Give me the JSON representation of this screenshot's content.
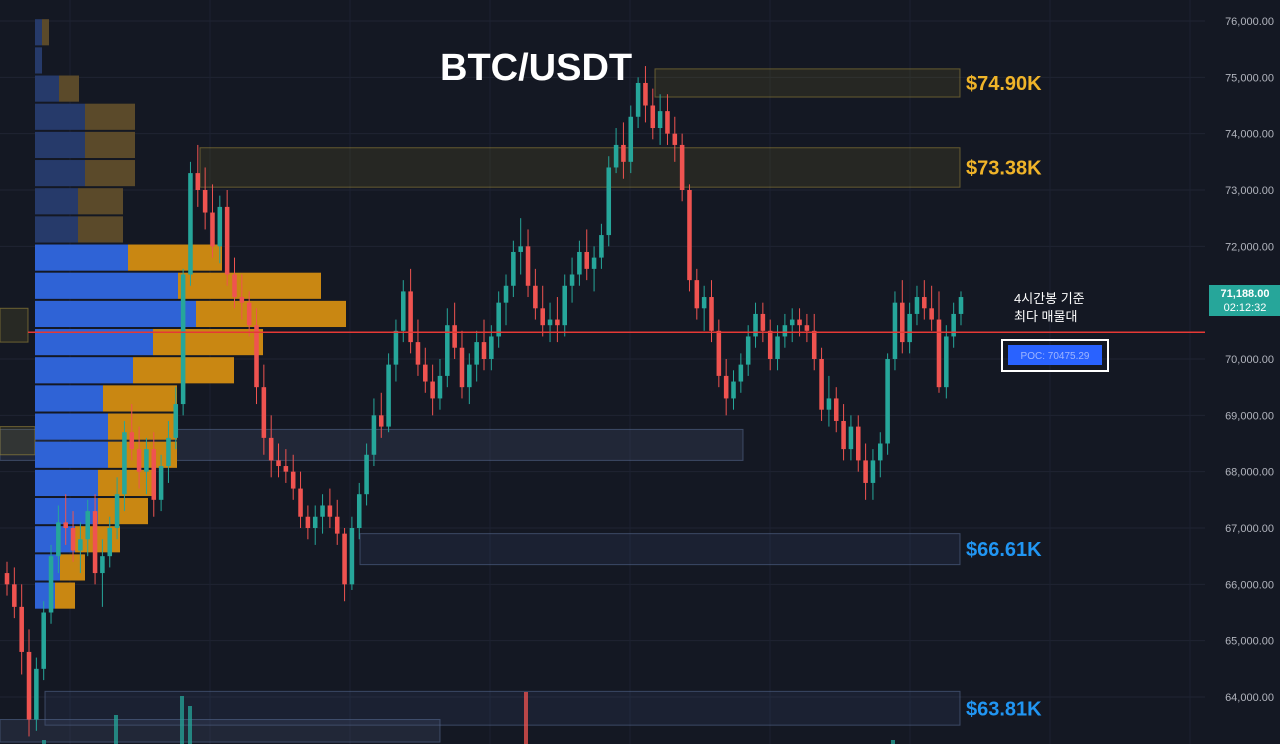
{
  "chart_data": {
    "type": "candlestick",
    "title": "BTC/USDT",
    "y_axis": {
      "ticks": [
        "76,000.00",
        "75,000.00",
        "74,000.00",
        "73,000.00",
        "72,000.00",
        "70,000.00",
        "69,000.00",
        "68,000.00",
        "67,000.00",
        "66,000.00",
        "65,000.00",
        "64,000.00"
      ],
      "tick_values": [
        76000,
        75000,
        74000,
        73000,
        72000,
        70000,
        69000,
        68000,
        67000,
        66000,
        65000,
        64000
      ],
      "range": [
        63200,
        76400
      ]
    },
    "current_price": {
      "label": "71,188.00",
      "countdown": "02:12:32",
      "value": 71188
    },
    "poc": {
      "value": 70475.29,
      "label": "POC: 70475.29",
      "note_line1": "4시간봉 기준",
      "note_line2": "최다 매물대"
    },
    "levels": [
      {
        "label": "$74.90K",
        "low": 74650,
        "high": 75150,
        "color": "#f0b429"
      },
      {
        "label": "$73.38K",
        "low": 73050,
        "high": 73750,
        "color": "#f0b429"
      },
      {
        "label": "$66.61K",
        "low": 66350,
        "high": 66900,
        "color": "#2196f3"
      },
      {
        "label": "$63.81K",
        "low": 63500,
        "high": 64100,
        "color": "#2196f3"
      }
    ],
    "extra_zones": [
      {
        "low": 68200,
        "high": 68750,
        "color": "#4a5a78"
      }
    ],
    "volume_profile": {
      "bins": [
        {
          "mid": 75800,
          "buy": 7,
          "sell": 7
        },
        {
          "mid": 75300,
          "buy": 7,
          "sell": 0
        },
        {
          "mid": 74800,
          "buy": 24,
          "sell": 20
        },
        {
          "mid": 74300,
          "buy": 50,
          "sell": 50
        },
        {
          "mid": 73800,
          "buy": 50,
          "sell": 50
        },
        {
          "mid": 73300,
          "buy": 50,
          "sell": 50
        },
        {
          "mid": 72800,
          "buy": 43,
          "sell": 45
        },
        {
          "mid": 72300,
          "buy": 43,
          "sell": 45
        },
        {
          "mid": 71800,
          "buy": 93,
          "sell": 94
        },
        {
          "mid": 71300,
          "buy": 143,
          "sell": 143
        },
        {
          "mid": 70800,
          "buy": 161,
          "sell": 150
        },
        {
          "mid": 70300,
          "buy": 118,
          "sell": 110
        },
        {
          "mid": 69800,
          "buy": 98,
          "sell": 101
        },
        {
          "mid": 69300,
          "buy": 68,
          "sell": 74
        },
        {
          "mid": 68800,
          "buy": 73,
          "sell": 69
        },
        {
          "mid": 68300,
          "buy": 73,
          "sell": 69
        },
        {
          "mid": 67800,
          "buy": 63,
          "sell": 55
        },
        {
          "mid": 67300,
          "buy": 63,
          "sell": 50
        },
        {
          "mid": 66800,
          "buy": 40,
          "sell": 45
        },
        {
          "mid": 66300,
          "buy": 25,
          "sell": 25
        },
        {
          "mid": 65800,
          "buy": 20,
          "sell": 20
        }
      ]
    },
    "candles": [
      [
        66200,
        66400,
        65800,
        66000
      ],
      [
        66000,
        66300,
        65400,
        65600
      ],
      [
        65600,
        66000,
        64400,
        64800
      ],
      [
        64800,
        65200,
        63300,
        63600
      ],
      [
        63600,
        64700,
        63400,
        64500
      ],
      [
        64500,
        65700,
        64300,
        65500
      ],
      [
        65500,
        66700,
        65300,
        66500
      ],
      [
        66500,
        67400,
        66200,
        67100
      ],
      [
        67100,
        67600,
        66700,
        67000
      ],
      [
        67000,
        67300,
        66400,
        66600
      ],
      [
        66600,
        67100,
        66200,
        66800
      ],
      [
        66800,
        67500,
        66500,
        67300
      ],
      [
        67300,
        67600,
        66000,
        66200
      ],
      [
        66200,
        66800,
        65600,
        66500
      ],
      [
        66500,
        67200,
        66300,
        67000
      ],
      [
        67000,
        67900,
        66800,
        67600
      ],
      [
        67600,
        68900,
        67300,
        68700
      ],
      [
        68700,
        69200,
        68200,
        68400
      ],
      [
        68400,
        68800,
        67700,
        68000
      ],
      [
        68000,
        68600,
        67600,
        68400
      ],
      [
        68400,
        68700,
        67200,
        67500
      ],
      [
        67500,
        68300,
        67300,
        68100
      ],
      [
        68100,
        68900,
        67800,
        68600
      ],
      [
        68600,
        69500,
        68400,
        69200
      ],
      [
        69200,
        71600,
        69000,
        71500
      ],
      [
        71500,
        73500,
        71300,
        73300
      ],
      [
        73300,
        73800,
        72700,
        73000
      ],
      [
        73000,
        73400,
        72300,
        72600
      ],
      [
        72600,
        73100,
        71800,
        72000
      ],
      [
        72000,
        72900,
        71700,
        72700
      ],
      [
        72700,
        73000,
        71300,
        71500
      ],
      [
        71500,
        71800,
        70900,
        71100
      ],
      [
        71100,
        71500,
        70700,
        71000
      ],
      [
        71000,
        71200,
        70400,
        70600
      ],
      [
        70600,
        70900,
        69200,
        69500
      ],
      [
        69500,
        69900,
        68300,
        68600
      ],
      [
        68600,
        69000,
        67900,
        68200
      ],
      [
        68200,
        68500,
        67900,
        68100
      ],
      [
        68100,
        68400,
        67800,
        68000
      ],
      [
        68000,
        68300,
        67500,
        67700
      ],
      [
        67700,
        68000,
        67000,
        67200
      ],
      [
        67200,
        67400,
        66800,
        67000
      ],
      [
        67000,
        67400,
        66700,
        67200
      ],
      [
        67200,
        67600,
        66900,
        67400
      ],
      [
        67400,
        67700,
        67000,
        67200
      ],
      [
        67200,
        67500,
        66700,
        66900
      ],
      [
        66900,
        67000,
        65700,
        66000
      ],
      [
        66000,
        67200,
        65900,
        67000
      ],
      [
        67000,
        67800,
        66800,
        67600
      ],
      [
        67600,
        68500,
        67400,
        68300
      ],
      [
        68300,
        69300,
        68100,
        69000
      ],
      [
        69000,
        69400,
        68600,
        68800
      ],
      [
        68800,
        70100,
        68700,
        69900
      ],
      [
        69900,
        70700,
        69600,
        70500
      ],
      [
        70500,
        71400,
        70300,
        71200
      ],
      [
        71200,
        71600,
        70100,
        70300
      ],
      [
        70300,
        70700,
        69700,
        69900
      ],
      [
        69900,
        70200,
        69400,
        69600
      ],
      [
        69600,
        69900,
        69000,
        69300
      ],
      [
        69300,
        70000,
        69100,
        69700
      ],
      [
        69700,
        70900,
        69500,
        70600
      ],
      [
        70600,
        71000,
        70000,
        70200
      ],
      [
        70200,
        70500,
        69300,
        69500
      ],
      [
        69500,
        70100,
        69200,
        69900
      ],
      [
        69900,
        70500,
        69600,
        70300
      ],
      [
        70300,
        70700,
        69800,
        70000
      ],
      [
        70000,
        70600,
        69800,
        70400
      ],
      [
        70400,
        71200,
        70200,
        71000
      ],
      [
        71000,
        71500,
        70600,
        71300
      ],
      [
        71300,
        72100,
        71100,
        71900
      ],
      [
        71900,
        72500,
        71500,
        72000
      ],
      [
        72000,
        72300,
        71100,
        71300
      ],
      [
        71300,
        71600,
        70700,
        70900
      ],
      [
        70900,
        71300,
        70400,
        70600
      ],
      [
        70600,
        71000,
        70300,
        70700
      ],
      [
        70700,
        71100,
        70300,
        70600
      ],
      [
        70600,
        71500,
        70400,
        71300
      ],
      [
        71300,
        71800,
        71000,
        71500
      ],
      [
        71500,
        72100,
        71300,
        71900
      ],
      [
        71900,
        72300,
        71400,
        71600
      ],
      [
        71600,
        72000,
        71200,
        71800
      ],
      [
        71800,
        72400,
        71600,
        72200
      ],
      [
        72200,
        73600,
        72000,
        73400
      ],
      [
        73400,
        74100,
        73300,
        73800
      ],
      [
        73800,
        74200,
        73200,
        73500
      ],
      [
        73500,
        74500,
        73300,
        74300
      ],
      [
        74300,
        75000,
        74100,
        74900
      ],
      [
        74900,
        75200,
        74200,
        74500
      ],
      [
        74500,
        74800,
        73900,
        74100
      ],
      [
        74100,
        74700,
        73800,
        74400
      ],
      [
        74400,
        74700,
        73800,
        74000
      ],
      [
        74000,
        74300,
        73500,
        73800
      ],
      [
        73800,
        74000,
        72800,
        73000
      ],
      [
        73000,
        73100,
        71200,
        71400
      ],
      [
        71400,
        71600,
        70700,
        70900
      ],
      [
        70900,
        71300,
        70500,
        71100
      ],
      [
        71100,
        71400,
        70300,
        70500
      ],
      [
        70500,
        70700,
        69500,
        69700
      ],
      [
        69700,
        70000,
        69000,
        69300
      ],
      [
        69300,
        69800,
        69100,
        69600
      ],
      [
        69600,
        70100,
        69400,
        69900
      ],
      [
        69900,
        70600,
        69700,
        70400
      ],
      [
        70400,
        71000,
        70200,
        70800
      ],
      [
        70800,
        71000,
        70300,
        70500
      ],
      [
        70500,
        70700,
        69800,
        70000
      ],
      [
        70000,
        70600,
        69800,
        70400
      ],
      [
        70400,
        70800,
        70200,
        70600
      ],
      [
        70600,
        70900,
        70300,
        70700
      ],
      [
        70700,
        70900,
        70400,
        70600
      ],
      [
        70600,
        70800,
        70300,
        70500
      ],
      [
        70500,
        70800,
        69800,
        70000
      ],
      [
        70000,
        70200,
        68900,
        69100
      ],
      [
        69100,
        69700,
        68800,
        69300
      ],
      [
        69300,
        69500,
        68700,
        68900
      ],
      [
        68900,
        69200,
        68200,
        68400
      ],
      [
        68400,
        69000,
        68200,
        68800
      ],
      [
        68800,
        69000,
        68000,
        68200
      ],
      [
        68200,
        68500,
        67500,
        67800
      ],
      [
        67800,
        68400,
        67500,
        68200
      ],
      [
        68200,
        68700,
        67900,
        68500
      ],
      [
        68500,
        70100,
        68300,
        70000
      ],
      [
        70000,
        71200,
        69800,
        71000
      ],
      [
        71000,
        71400,
        70100,
        70300
      ],
      [
        70300,
        71000,
        70100,
        70800
      ],
      [
        70800,
        71300,
        70600,
        71100
      ],
      [
        71100,
        71400,
        70700,
        70900
      ],
      [
        70900,
        71300,
        70500,
        70700
      ],
      [
        70700,
        71200,
        69400,
        69500
      ],
      [
        69500,
        70600,
        69300,
        70400
      ],
      [
        70400,
        71000,
        70200,
        70800
      ],
      [
        70800,
        71200,
        70600,
        71100
      ]
    ]
  }
}
